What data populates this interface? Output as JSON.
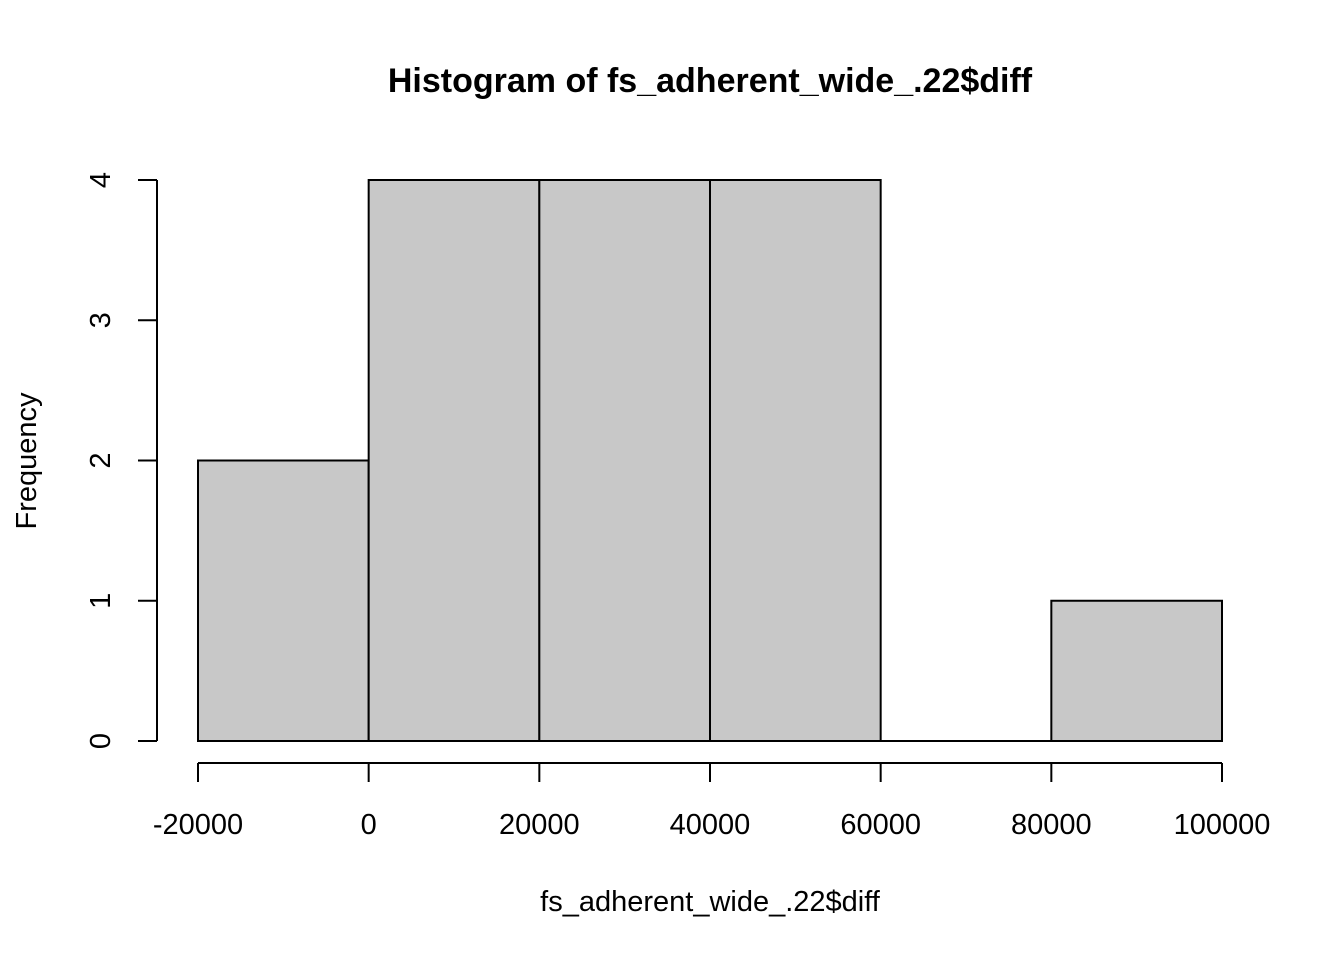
{
  "chart_data": {
    "type": "bar",
    "title": "Histogram of fs_adherent_wide_.22$diff",
    "xlabel": "fs_adherent_wide_.22$diff",
    "ylabel": "Frequency",
    "bins": [
      {
        "start": -20000,
        "end": 0,
        "count": 2
      },
      {
        "start": 0,
        "end": 20000,
        "count": 4
      },
      {
        "start": 20000,
        "end": 40000,
        "count": 4
      },
      {
        "start": 40000,
        "end": 60000,
        "count": 4
      },
      {
        "start": 60000,
        "end": 80000,
        "count": 0
      },
      {
        "start": 80000,
        "end": 100000,
        "count": 1
      }
    ],
    "xlim": [
      -20000,
      100000
    ],
    "ylim": [
      0,
      4
    ],
    "xticks": [
      "-20000",
      "0",
      "20000",
      "40000",
      "60000",
      "80000",
      "100000"
    ],
    "xtick_values": [
      -20000,
      0,
      20000,
      40000,
      60000,
      80000,
      100000
    ],
    "yticks": [
      "0",
      "1",
      "2",
      "3",
      "4"
    ],
    "ytick_values": [
      0,
      1,
      2,
      3,
      4
    ],
    "grid": false,
    "legend": "none",
    "bar_fill": "#c8c8c8",
    "bar_stroke": "#000000"
  }
}
